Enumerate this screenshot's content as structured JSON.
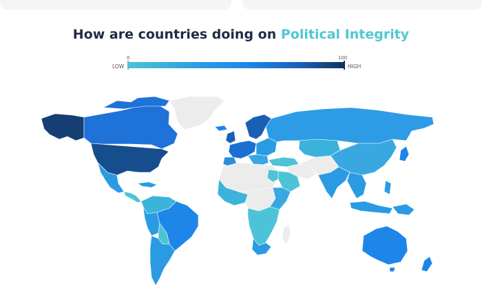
{
  "title": {
    "prefix": "How are countries doing on ",
    "highlight": "Political Integrity"
  },
  "legend": {
    "min_value": "0",
    "max_value": "100",
    "low_label": "LOW",
    "high_label": "HIGH"
  },
  "colors": {
    "title_text": "#1d2c44",
    "accent": "#4fc8d0",
    "no_data": "#ececec",
    "scale_low": "#4cc3d6",
    "scale_mid": "#1e86e8",
    "scale_high": "#10325e"
  }
}
